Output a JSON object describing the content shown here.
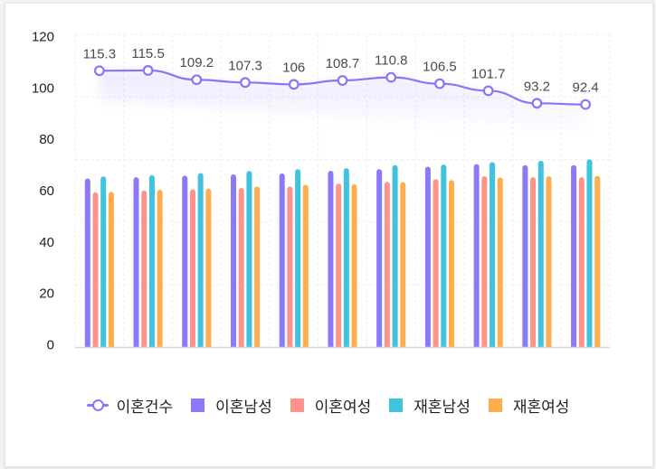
{
  "chart_data": {
    "type": "bar",
    "title": "",
    "xlabel": "",
    "ylabel": "",
    "categories": [
      "",
      "",
      "",
      "",
      "",
      "",
      "",
      "",
      "",
      "",
      ""
    ],
    "ylim": [
      0,
      120
    ],
    "yticks": [
      0,
      20,
      40,
      60,
      80,
      100,
      120
    ],
    "grid": true,
    "legend_position": "bottom",
    "series": [
      {
        "name": "이혼건수",
        "type": "line",
        "color": "#8877f5",
        "show_labels": true,
        "axis": "secondary",
        "axis_range": [
          -72.5,
          140
        ],
        "values": [
          115.3,
          115.5,
          109.2,
          107.3,
          106,
          108.7,
          110.8,
          106.5,
          101.7,
          93.2,
          92.4
        ]
      },
      {
        "name": "이혼남성",
        "type": "bar",
        "color": "#8a79fb",
        "values": [
          65.8,
          66.3,
          66.9,
          67.4,
          67.8,
          68.8,
          69.4,
          70.4,
          71.4,
          71.0,
          71.0
        ]
      },
      {
        "name": "이혼여성",
        "type": "bar",
        "color": "#ff928a",
        "values": [
          60.4,
          61.1,
          61.6,
          62.1,
          62.7,
          63.8,
          64.5,
          65.5,
          66.7,
          66.3,
          66.3
        ]
      },
      {
        "name": "재혼남성",
        "type": "bar",
        "color": "#3fc3df",
        "values": [
          66.6,
          67.1,
          67.9,
          68.7,
          69.4,
          69.8,
          71.0,
          71.2,
          72.2,
          72.7,
          73.3
        ]
      },
      {
        "name": "재혼여성",
        "type": "bar",
        "color": "#ffad4d",
        "values": [
          60.6,
          61.4,
          61.9,
          62.7,
          63.3,
          63.5,
          64.4,
          65.2,
          66.2,
          66.7,
          66.8
        ]
      }
    ]
  },
  "legend": {
    "items": [
      {
        "label": "이혼건수",
        "kind": "line",
        "color": "#8877f5"
      },
      {
        "label": "이혼남성",
        "kind": "square",
        "color": "#8a79fb"
      },
      {
        "label": "이혼여성",
        "kind": "square",
        "color": "#ff928a"
      },
      {
        "label": "재혼남성",
        "kind": "square",
        "color": "#3fc3df"
      },
      {
        "label": "재혼여성",
        "kind": "square",
        "color": "#ffad4d"
      }
    ]
  }
}
